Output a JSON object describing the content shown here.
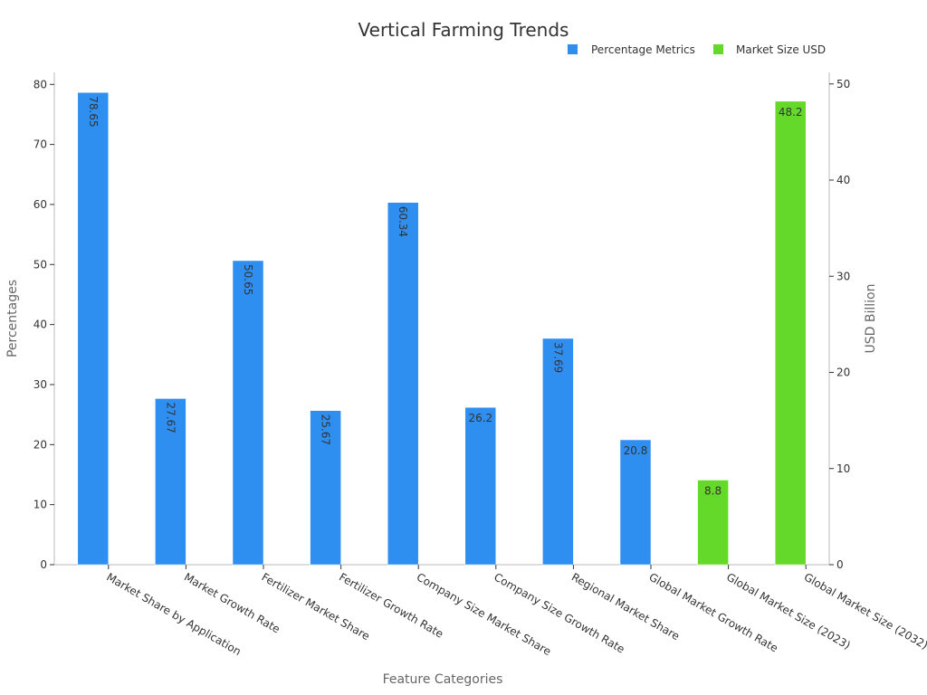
{
  "chart_data": {
    "type": "bar",
    "title": "Vertical Farming Trends",
    "xlabel": "Feature Categories",
    "ylabel": "Percentages",
    "y2label": "USD Billion",
    "ylim": [
      0,
      82
    ],
    "y2lim": [
      0,
      51.2
    ],
    "yticks": [
      0,
      10,
      20,
      30,
      40,
      50,
      60,
      70,
      80
    ],
    "y2ticks": [
      0,
      10,
      20,
      30,
      40,
      50
    ],
    "legend_position": "top-right",
    "grid": false,
    "categories": [
      "Market Share by Application",
      "Market Growth Rate",
      "Fertilizer Market Share",
      "Fertilizer Growth Rate",
      "Company Size Market Share",
      "Company Size Growth Rate",
      "Regional Market Share",
      "Global Market Growth Rate",
      "Global Market Size (2023)",
      "Global Market Size (2032)"
    ],
    "series": [
      {
        "name": "Percentage Metrics",
        "axis": "left",
        "color": "#2f8ff0",
        "values": [
          78.65,
          27.67,
          50.65,
          25.67,
          60.34,
          26.2,
          37.69,
          20.8,
          null,
          null
        ]
      },
      {
        "name": "Market Size USD",
        "axis": "right",
        "color": "#64d929",
        "values": [
          null,
          null,
          null,
          null,
          null,
          null,
          null,
          null,
          8.8,
          48.2
        ]
      }
    ]
  }
}
